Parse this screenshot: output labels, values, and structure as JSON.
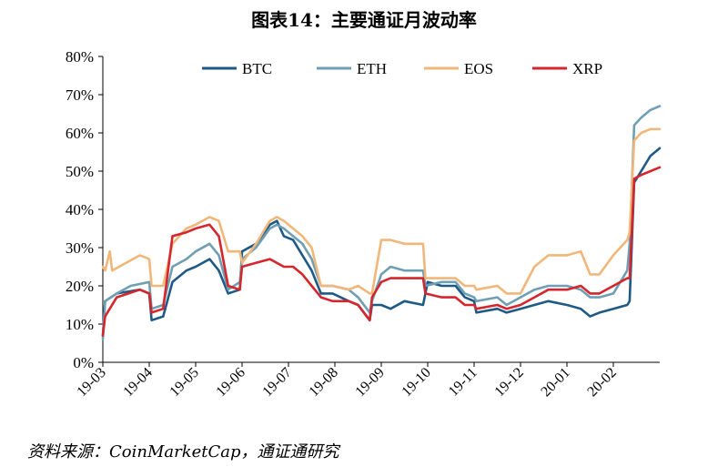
{
  "title": "图表14：主要通证月波动率",
  "source": "资料来源：CoinMarketCap，通证通研究",
  "chart_data": {
    "type": "line",
    "y_ticks": [
      "0%",
      "10%",
      "20%",
      "30%",
      "40%",
      "50%",
      "60%",
      "70%",
      "80%"
    ],
    "ylim": [
      0,
      80
    ],
    "x_ticks": [
      "19-03",
      "19-04",
      "19-05",
      "19-06",
      "19-07",
      "19-08",
      "19-09",
      "19-10",
      "19-11",
      "19-12",
      "20-01",
      "20-02"
    ],
    "legend_position": "top",
    "grid": false,
    "series": [
      {
        "name": "BTC",
        "color": "#1f5a86",
        "points": [
          [
            0,
            7
          ],
          [
            0.05,
            16
          ],
          [
            0.3,
            18
          ],
          [
            0.8,
            19
          ],
          [
            1.0,
            18
          ],
          [
            1.05,
            11
          ],
          [
            1.3,
            12
          ],
          [
            1.5,
            21
          ],
          [
            1.8,
            24
          ],
          [
            2.0,
            25
          ],
          [
            2.3,
            27
          ],
          [
            2.5,
            24
          ],
          [
            2.7,
            18
          ],
          [
            2.95,
            19
          ],
          [
            3.0,
            29
          ],
          [
            3.3,
            31
          ],
          [
            3.6,
            36
          ],
          [
            3.75,
            37
          ],
          [
            3.9,
            33
          ],
          [
            4.1,
            32
          ],
          [
            4.3,
            28
          ],
          [
            4.5,
            24
          ],
          [
            4.7,
            18
          ],
          [
            4.95,
            18
          ],
          [
            5.3,
            16
          ],
          [
            5.5,
            15
          ],
          [
            5.75,
            11
          ],
          [
            5.8,
            15
          ],
          [
            6.0,
            15
          ],
          [
            6.2,
            14
          ],
          [
            6.5,
            16
          ],
          [
            6.9,
            15
          ],
          [
            6.95,
            18
          ],
          [
            7.0,
            21
          ],
          [
            7.3,
            20
          ],
          [
            7.6,
            20
          ],
          [
            7.8,
            17
          ],
          [
            8.0,
            16
          ],
          [
            8.05,
            13
          ],
          [
            8.5,
            14
          ],
          [
            8.7,
            13
          ],
          [
            9.0,
            14
          ],
          [
            9.3,
            15
          ],
          [
            9.6,
            16
          ],
          [
            10.0,
            15
          ],
          [
            10.3,
            14
          ],
          [
            10.5,
            12
          ],
          [
            10.7,
            13
          ],
          [
            11.0,
            14
          ],
          [
            11.3,
            15
          ],
          [
            11.35,
            16
          ],
          [
            11.45,
            47
          ],
          [
            11.6,
            50
          ],
          [
            11.8,
            54
          ],
          [
            12.0,
            56
          ]
        ]
      },
      {
        "name": "ETH",
        "color": "#6f9fb4",
        "points": [
          [
            0,
            6
          ],
          [
            0.05,
            16
          ],
          [
            0.3,
            18
          ],
          [
            0.6,
            20
          ],
          [
            1.0,
            21
          ],
          [
            1.05,
            14
          ],
          [
            1.3,
            15
          ],
          [
            1.5,
            25
          ],
          [
            1.8,
            27
          ],
          [
            2.0,
            29
          ],
          [
            2.3,
            31
          ],
          [
            2.5,
            28
          ],
          [
            2.7,
            19
          ],
          [
            2.95,
            21
          ],
          [
            3.0,
            27
          ],
          [
            3.3,
            30
          ],
          [
            3.6,
            35
          ],
          [
            3.75,
            36
          ],
          [
            3.9,
            35
          ],
          [
            4.1,
            33
          ],
          [
            4.3,
            31
          ],
          [
            4.5,
            27
          ],
          [
            4.7,
            20
          ],
          [
            4.95,
            20
          ],
          [
            5.3,
            19
          ],
          [
            5.5,
            17
          ],
          [
            5.75,
            13
          ],
          [
            5.8,
            16
          ],
          [
            6.0,
            23
          ],
          [
            6.2,
            25
          ],
          [
            6.5,
            24
          ],
          [
            6.9,
            24
          ],
          [
            6.95,
            20
          ],
          [
            7.3,
            21
          ],
          [
            7.6,
            21
          ],
          [
            7.8,
            18
          ],
          [
            8.0,
            17
          ],
          [
            8.05,
            16
          ],
          [
            8.5,
            17
          ],
          [
            8.7,
            15
          ],
          [
            9.0,
            17
          ],
          [
            9.3,
            19
          ],
          [
            9.6,
            20
          ],
          [
            10.0,
            20
          ],
          [
            10.3,
            19
          ],
          [
            10.5,
            17
          ],
          [
            10.7,
            17
          ],
          [
            11.0,
            18
          ],
          [
            11.3,
            24
          ],
          [
            11.35,
            31
          ],
          [
            11.45,
            62
          ],
          [
            11.6,
            64
          ],
          [
            11.8,
            66
          ],
          [
            12.0,
            67
          ]
        ]
      },
      {
        "name": "EOS",
        "color": "#f1b77a",
        "points": [
          [
            0,
            25
          ],
          [
            0.05,
            24
          ],
          [
            0.15,
            29
          ],
          [
            0.2,
            24
          ],
          [
            0.5,
            26
          ],
          [
            0.8,
            28
          ],
          [
            1.0,
            27
          ],
          [
            1.05,
            20
          ],
          [
            1.3,
            20
          ],
          [
            1.5,
            31
          ],
          [
            1.8,
            35
          ],
          [
            2.0,
            36
          ],
          [
            2.3,
            38
          ],
          [
            2.5,
            37
          ],
          [
            2.7,
            29
          ],
          [
            2.95,
            29
          ],
          [
            3.0,
            26
          ],
          [
            3.3,
            31
          ],
          [
            3.6,
            37
          ],
          [
            3.75,
            38
          ],
          [
            3.9,
            37
          ],
          [
            4.1,
            35
          ],
          [
            4.3,
            33
          ],
          [
            4.5,
            30
          ],
          [
            4.7,
            20
          ],
          [
            4.95,
            20
          ],
          [
            5.3,
            19
          ],
          [
            5.5,
            20
          ],
          [
            5.75,
            18
          ],
          [
            5.8,
            18
          ],
          [
            6.0,
            32
          ],
          [
            6.2,
            32
          ],
          [
            6.5,
            31
          ],
          [
            6.9,
            31
          ],
          [
            6.95,
            22
          ],
          [
            7.3,
            22
          ],
          [
            7.6,
            22
          ],
          [
            7.8,
            20
          ],
          [
            8.0,
            20
          ],
          [
            8.05,
            19
          ],
          [
            8.5,
            20
          ],
          [
            8.7,
            18
          ],
          [
            9.0,
            18
          ],
          [
            9.3,
            25
          ],
          [
            9.6,
            28
          ],
          [
            10.0,
            28
          ],
          [
            10.3,
            29
          ],
          [
            10.5,
            23
          ],
          [
            10.7,
            23
          ],
          [
            11.0,
            28
          ],
          [
            11.3,
            32
          ],
          [
            11.35,
            34
          ],
          [
            11.45,
            58
          ],
          [
            11.6,
            60
          ],
          [
            11.8,
            61
          ],
          [
            12.0,
            61
          ]
        ]
      },
      {
        "name": "XRP",
        "color": "#d4262d",
        "points": [
          [
            0,
            7
          ],
          [
            0.05,
            12
          ],
          [
            0.3,
            17
          ],
          [
            0.8,
            19
          ],
          [
            1.0,
            18
          ],
          [
            1.05,
            13
          ],
          [
            1.3,
            14
          ],
          [
            1.5,
            33
          ],
          [
            1.8,
            34
          ],
          [
            2.0,
            35
          ],
          [
            2.3,
            36
          ],
          [
            2.5,
            33
          ],
          [
            2.7,
            20
          ],
          [
            2.95,
            19
          ],
          [
            3.0,
            25
          ],
          [
            3.3,
            26
          ],
          [
            3.6,
            27
          ],
          [
            3.75,
            26
          ],
          [
            3.9,
            25
          ],
          [
            4.1,
            25
          ],
          [
            4.3,
            23
          ],
          [
            4.5,
            20
          ],
          [
            4.7,
            17
          ],
          [
            4.95,
            16
          ],
          [
            5.3,
            16
          ],
          [
            5.5,
            15
          ],
          [
            5.75,
            11
          ],
          [
            5.8,
            17
          ],
          [
            6.0,
            21
          ],
          [
            6.2,
            22
          ],
          [
            6.5,
            22
          ],
          [
            6.9,
            22
          ],
          [
            6.95,
            18
          ],
          [
            7.3,
            17
          ],
          [
            7.6,
            17
          ],
          [
            7.8,
            15
          ],
          [
            8.0,
            15
          ],
          [
            8.05,
            14
          ],
          [
            8.5,
            15
          ],
          [
            8.7,
            14
          ],
          [
            9.0,
            15
          ],
          [
            9.3,
            17
          ],
          [
            9.6,
            19
          ],
          [
            10.0,
            19
          ],
          [
            10.3,
            20
          ],
          [
            10.5,
            18
          ],
          [
            10.7,
            18
          ],
          [
            11.0,
            20
          ],
          [
            11.3,
            22
          ],
          [
            11.35,
            22
          ],
          [
            11.45,
            48
          ],
          [
            11.6,
            49
          ],
          [
            11.8,
            50
          ],
          [
            12.0,
            51
          ]
        ]
      }
    ]
  }
}
